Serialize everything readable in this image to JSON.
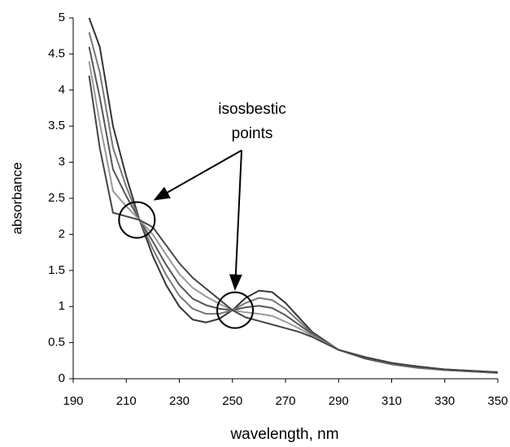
{
  "chart_data": {
    "type": "line",
    "xlabel": "wavelength, nm",
    "ylabel": "absorbance",
    "annotation": {
      "lines": [
        "isosbestic",
        "points"
      ],
      "points": [
        {
          "x": 214,
          "y": 2.2
        },
        {
          "x": 251,
          "y": 0.95
        }
      ]
    },
    "x": [
      196,
      200,
      205,
      210,
      215,
      220,
      225,
      230,
      235,
      240,
      245,
      250,
      255,
      260,
      265,
      270,
      275,
      280,
      290,
      300,
      310,
      320,
      330,
      340,
      350
    ],
    "series": [
      {
        "color": "#333333",
        "values": [
          5,
          4.6,
          3.5,
          2.8,
          2.2,
          1.7,
          1.3,
          1.0,
          0.82,
          0.78,
          0.83,
          0.95,
          1.12,
          1.22,
          1.2,
          1.05,
          0.85,
          0.65,
          0.4,
          0.28,
          0.2,
          0.15,
          0.12,
          0.1,
          0.08
        ]
      },
      {
        "color": "#777777",
        "values": [
          4.8,
          4.25,
          3.2,
          2.66,
          2.2,
          1.8,
          1.44,
          1.15,
          0.97,
          0.9,
          0.9,
          0.95,
          1.05,
          1.12,
          1.09,
          0.97,
          0.8,
          0.63,
          0.4,
          0.29,
          0.2,
          0.15,
          0.12,
          0.1,
          0.08
        ]
      },
      {
        "color": "#555555",
        "values": [
          4.6,
          3.9,
          2.9,
          2.53,
          2.2,
          1.9,
          1.58,
          1.3,
          1.11,
          1.02,
          0.97,
          0.95,
          0.99,
          1.01,
          0.98,
          0.88,
          0.75,
          0.62,
          0.4,
          0.29,
          0.21,
          0.16,
          0.13,
          0.11,
          0.09
        ]
      },
      {
        "color": "#999999",
        "values": [
          4.4,
          3.55,
          2.6,
          2.39,
          2.2,
          2.0,
          1.72,
          1.45,
          1.26,
          1.14,
          1.04,
          0.95,
          0.92,
          0.9,
          0.87,
          0.79,
          0.7,
          0.6,
          0.4,
          0.3,
          0.22,
          0.17,
          0.13,
          0.11,
          0.09
        ]
      },
      {
        "color": "#444444",
        "values": [
          4.2,
          3.2,
          2.3,
          2.25,
          2.2,
          2.1,
          1.85,
          1.6,
          1.4,
          1.25,
          1.1,
          0.95,
          0.85,
          0.8,
          0.75,
          0.7,
          0.65,
          0.58,
          0.4,
          0.3,
          0.22,
          0.17,
          0.13,
          0.11,
          0.09
        ]
      }
    ],
    "xlim": [
      190,
      350
    ],
    "xticks": [
      190,
      210,
      230,
      250,
      270,
      290,
      310,
      330,
      350
    ],
    "ylim": [
      0,
      5
    ],
    "yticks": [
      0,
      0.5,
      1,
      1.5,
      2,
      2.5,
      3,
      3.5,
      4,
      4.5,
      5
    ],
    "grid": false
  }
}
